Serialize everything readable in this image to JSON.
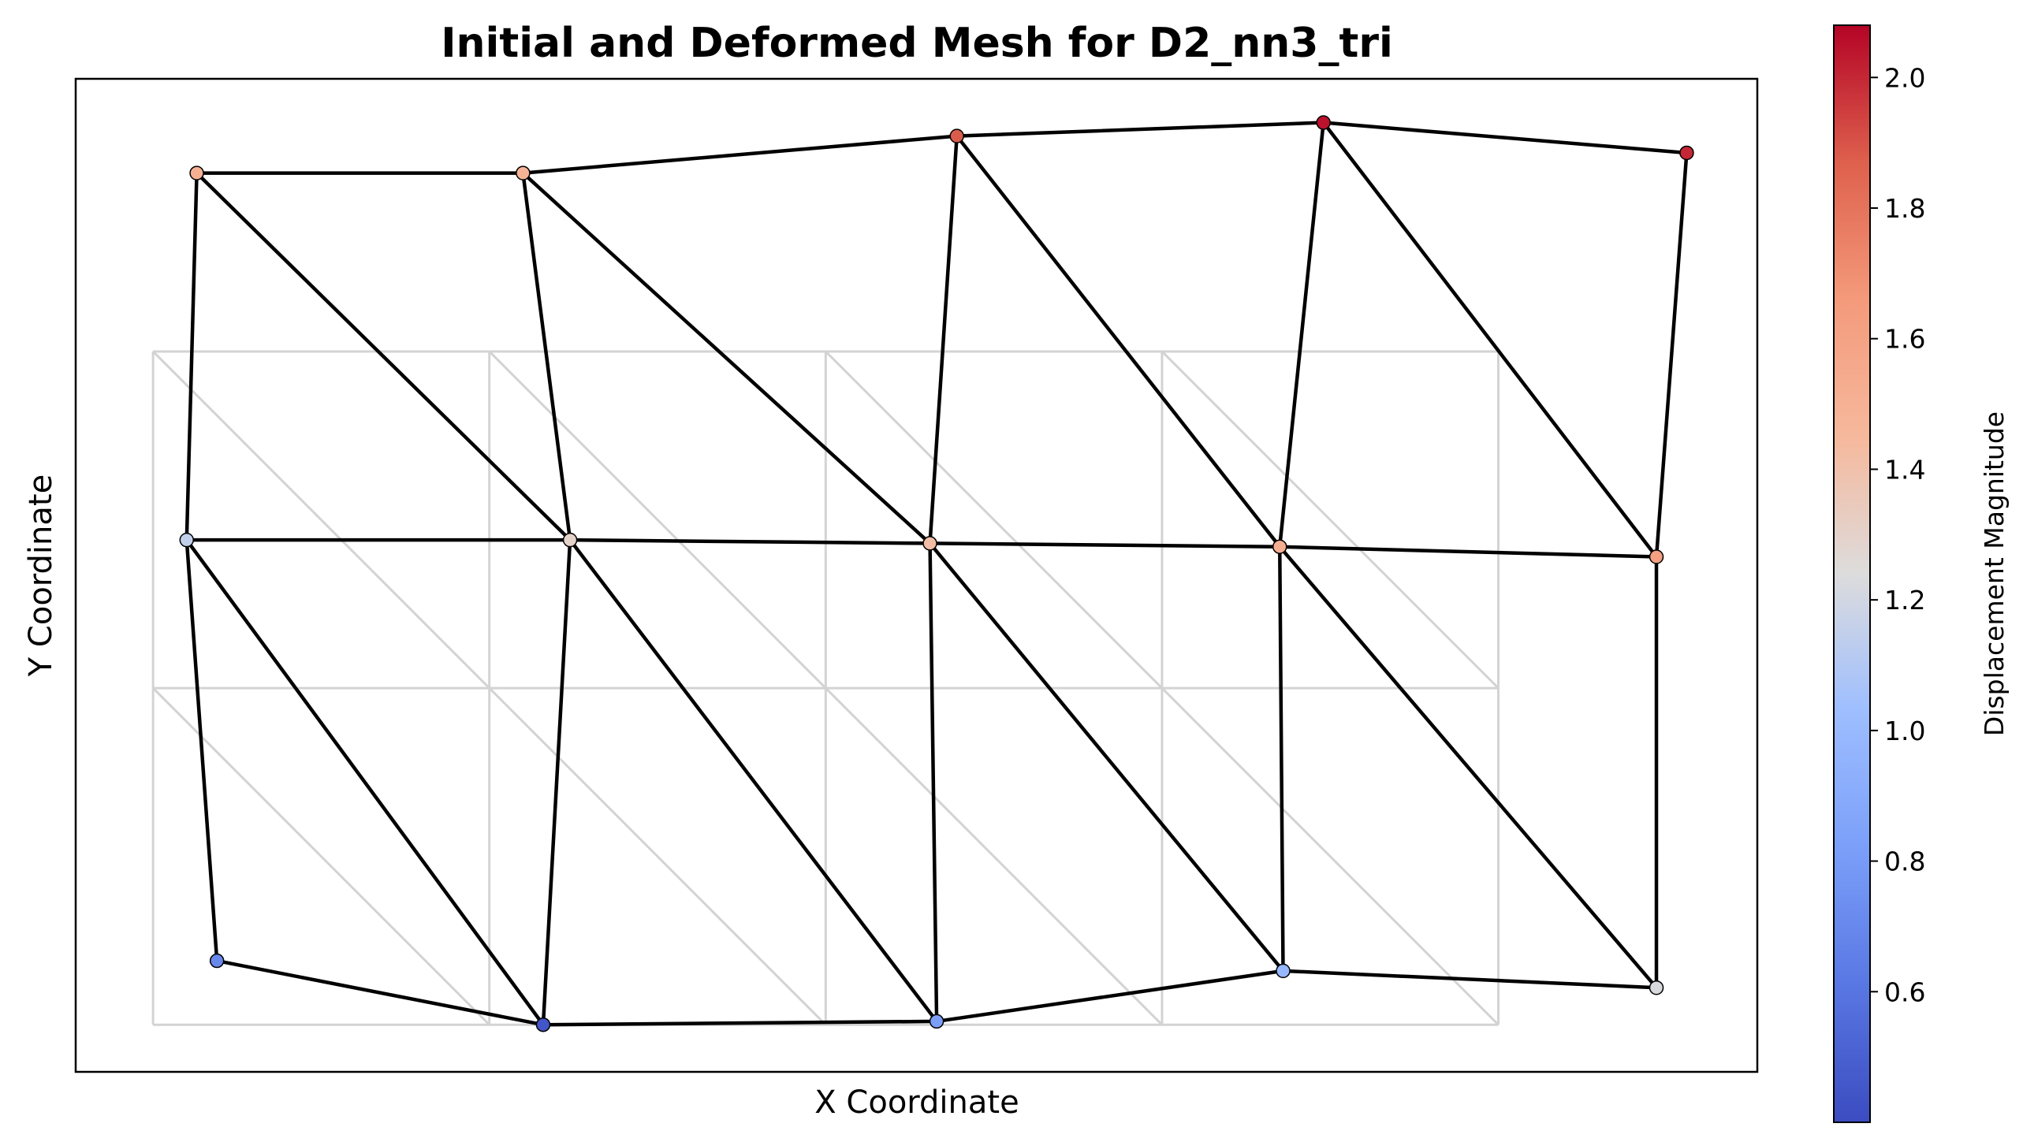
{
  "chart_data": {
    "type": "scatter",
    "title": "Initial and Deformed Mesh for D2_nn3_tri",
    "xlabel": "X Coordinate",
    "ylabel": "Y Coordinate",
    "grid": false,
    "xlim": [
      -0.23,
      4.77
    ],
    "ylim": [
      -0.14,
      2.81
    ],
    "initial_mesh": {
      "color": "#d3d3d3",
      "nodes": [
        [
          0,
          0
        ],
        [
          1,
          0
        ],
        [
          2,
          0
        ],
        [
          3,
          0
        ],
        [
          4,
          0
        ],
        [
          0,
          1
        ],
        [
          1,
          1
        ],
        [
          2,
          1
        ],
        [
          3,
          1
        ],
        [
          4,
          1
        ],
        [
          0,
          2
        ],
        [
          1,
          2
        ],
        [
          2,
          2
        ],
        [
          3,
          2
        ],
        [
          4,
          2
        ]
      ],
      "triangles": [
        [
          0,
          1,
          5
        ],
        [
          1,
          6,
          5
        ],
        [
          1,
          2,
          6
        ],
        [
          2,
          7,
          6
        ],
        [
          2,
          3,
          7
        ],
        [
          3,
          8,
          7
        ],
        [
          3,
          4,
          8
        ],
        [
          4,
          9,
          8
        ],
        [
          5,
          6,
          10
        ],
        [
          6,
          11,
          10
        ],
        [
          6,
          7,
          11
        ],
        [
          7,
          12,
          11
        ],
        [
          7,
          8,
          12
        ],
        [
          8,
          13,
          12
        ],
        [
          8,
          9,
          13
        ],
        [
          9,
          14,
          13
        ]
      ]
    },
    "deformed_mesh": {
      "color": "#000000",
      "nodes": [
        {
          "x": 0.19,
          "y": 0.19,
          "value": 0.7
        },
        {
          "x": 1.16,
          "y": 0.0,
          "value": 0.45
        },
        {
          "x": 2.33,
          "y": 0.01,
          "value": 0.82
        },
        {
          "x": 3.36,
          "y": 0.16,
          "value": 0.98
        },
        {
          "x": 4.47,
          "y": 0.11,
          "value": 1.22
        },
        {
          "x": 0.1,
          "y": 1.44,
          "value": 1.15
        },
        {
          "x": 1.24,
          "y": 1.44,
          "value": 1.3
        },
        {
          "x": 2.31,
          "y": 1.43,
          "value": 1.42
        },
        {
          "x": 3.35,
          "y": 1.42,
          "value": 1.52
        },
        {
          "x": 4.47,
          "y": 1.39,
          "value": 1.62
        },
        {
          "x": 0.13,
          "y": 2.53,
          "value": 1.5
        },
        {
          "x": 1.1,
          "y": 2.53,
          "value": 1.48
        },
        {
          "x": 2.39,
          "y": 2.64,
          "value": 1.88
        },
        {
          "x": 3.48,
          "y": 2.68,
          "value": 2.05
        },
        {
          "x": 4.56,
          "y": 2.59,
          "value": 2.0
        }
      ],
      "triangles": [
        [
          0,
          1,
          5
        ],
        [
          1,
          6,
          5
        ],
        [
          1,
          2,
          6
        ],
        [
          2,
          7,
          6
        ],
        [
          2,
          3,
          7
        ],
        [
          3,
          8,
          7
        ],
        [
          3,
          4,
          8
        ],
        [
          4,
          9,
          8
        ],
        [
          5,
          6,
          10
        ],
        [
          6,
          11,
          10
        ],
        [
          6,
          7,
          11
        ],
        [
          7,
          12,
          11
        ],
        [
          7,
          8,
          12
        ],
        [
          8,
          13,
          12
        ],
        [
          8,
          9,
          13
        ],
        [
          9,
          14,
          13
        ]
      ]
    },
    "colorbar": {
      "label": "Displacement Magnitude",
      "colormap": "coolwarm",
      "range": [
        0.4,
        2.08
      ],
      "ticks": [
        0.6,
        0.8,
        1.0,
        1.2,
        1.4,
        1.6,
        1.8,
        2.0
      ],
      "tick_labels": [
        "0.6",
        "0.8",
        "1.0",
        "1.2",
        "1.4",
        "1.6",
        "1.8",
        "2.0"
      ],
      "placement": "right"
    }
  }
}
